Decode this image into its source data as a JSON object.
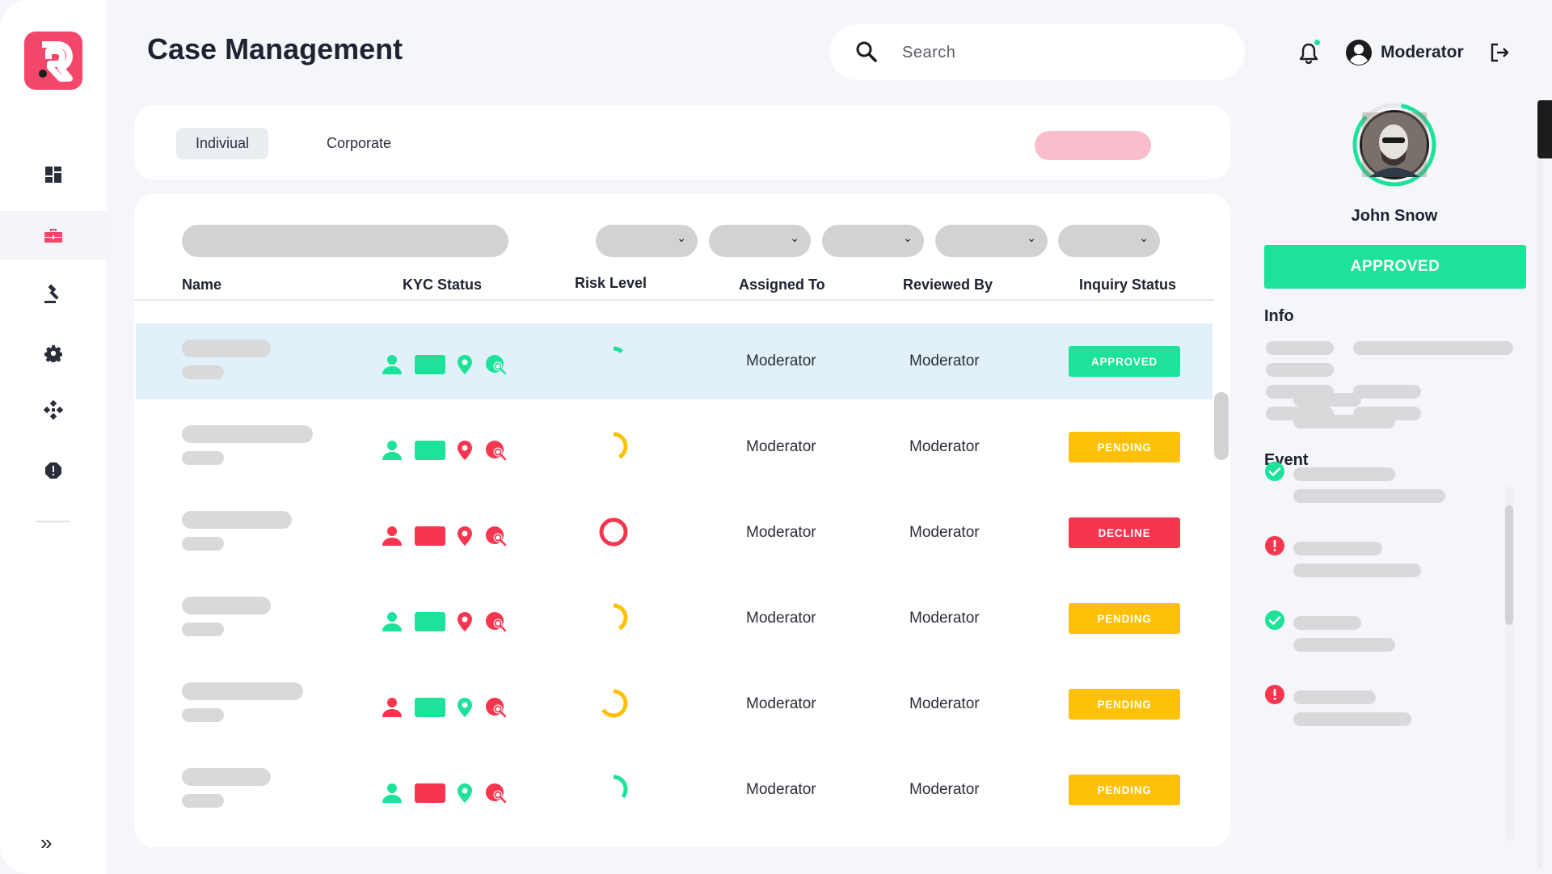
{
  "header": {
    "title": "Case Management",
    "search_placeholder": "Search",
    "user_name": "Moderator"
  },
  "sidebar": {
    "items": [
      {
        "icon": "dashboard-icon",
        "active": false
      },
      {
        "icon": "briefcase-icon",
        "active": true
      },
      {
        "icon": "gavel-icon",
        "active": false
      },
      {
        "icon": "gear-icon",
        "active": false
      },
      {
        "icon": "network-icon",
        "active": false
      },
      {
        "icon": "alert-icon",
        "active": false
      }
    ],
    "expand_label": "»"
  },
  "tabs": [
    {
      "label": "Indiviual",
      "active": true
    },
    {
      "label": "Corporate",
      "active": false
    }
  ],
  "table": {
    "columns": [
      "Name",
      "KYC Status",
      "Risk Level",
      "Assigned To",
      "Reviewed By",
      "Inquiry Status"
    ],
    "rows": [
      {
        "kyc": [
          "green",
          "green",
          "green",
          "green"
        ],
        "risk_fraction": 0.12,
        "risk_color": "#1de29a",
        "assigned_to": "Moderator",
        "reviewed_by": "Moderator",
        "status": "APPROVED",
        "status_color": "#1de29a",
        "selected": true
      },
      {
        "kyc": [
          "green",
          "green",
          "red",
          "red"
        ],
        "risk_fraction": 0.42,
        "risk_color": "#ffc107",
        "assigned_to": "Moderator",
        "reviewed_by": "Moderator",
        "status": "PENDING",
        "status_color": "#ffc107",
        "selected": false
      },
      {
        "kyc": [
          "red",
          "red",
          "red",
          "red"
        ],
        "risk_fraction": 1.0,
        "risk_color": "#f6354f",
        "assigned_to": "Moderator",
        "reviewed_by": "Moderator",
        "status": "DECLINE",
        "status_color": "#f6354f",
        "selected": false
      },
      {
        "kyc": [
          "green",
          "green",
          "red",
          "red"
        ],
        "risk_fraction": 0.42,
        "risk_color": "#ffc107",
        "assigned_to": "Moderator",
        "reviewed_by": "Moderator",
        "status": "PENDING",
        "status_color": "#ffc107",
        "selected": false
      },
      {
        "kyc": [
          "red",
          "green",
          "green",
          "red"
        ],
        "risk_fraction": 0.66,
        "risk_color": "#ffc107",
        "assigned_to": "Moderator",
        "reviewed_by": "Moderator",
        "status": "PENDING",
        "status_color": "#ffc107",
        "selected": false
      },
      {
        "kyc": [
          "green",
          "red",
          "green",
          "red"
        ],
        "risk_fraction": 0.36,
        "risk_color": "#1de29a",
        "assigned_to": "Moderator",
        "reviewed_by": "Moderator",
        "status": "PENDING",
        "status_color": "#ffc107",
        "selected": false
      }
    ]
  },
  "profile": {
    "name": "John Snow",
    "status_label": "APPROVED",
    "info_label": "Info",
    "event_label": "Event",
    "events": [
      {
        "icon": "none"
      },
      {
        "icon": "check-icon"
      },
      {
        "icon": "error-icon"
      },
      {
        "icon": "check-icon"
      },
      {
        "icon": "error-icon"
      }
    ]
  },
  "colors": {
    "accent_green": "#1de29a",
    "warning_yellow": "#ffc107",
    "danger_red": "#f6354f",
    "brand_pink": "#f4466b"
  }
}
